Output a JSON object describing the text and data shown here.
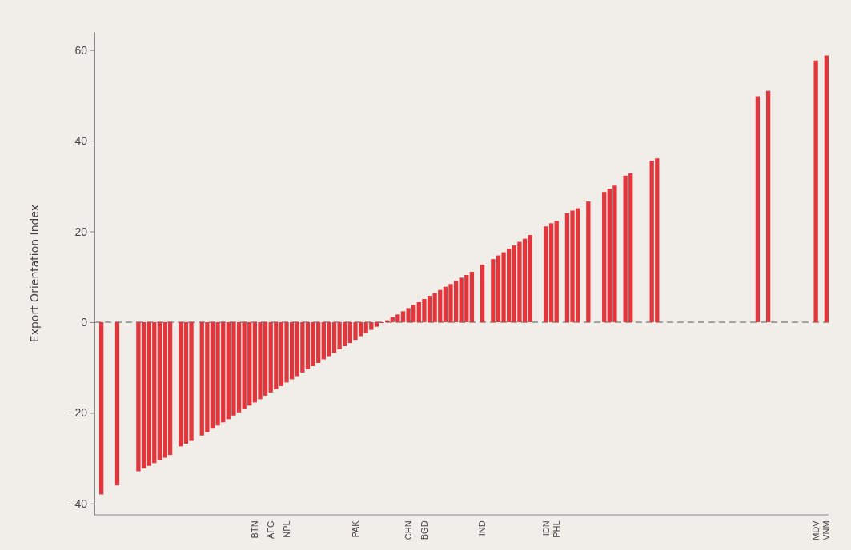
{
  "chart_data": {
    "type": "bar",
    "ylabel": "Export Orientation Index",
    "categories": [
      null,
      null,
      null,
      null,
      null,
      null,
      null,
      null,
      null,
      null,
      null,
      null,
      null,
      null,
      null,
      null,
      null,
      null,
      null,
      null,
      null,
      null,
      null,
      null,
      null,
      null,
      null,
      null,
      null,
      "BTN",
      null,
      null,
      "AFG",
      null,
      null,
      "NPL",
      null,
      null,
      null,
      null,
      null,
      null,
      null,
      null,
      null,
      null,
      null,
      null,
      "PAK",
      null,
      null,
      null,
      null,
      null,
      null,
      null,
      null,
      null,
      "CHN",
      null,
      null,
      "BGD",
      null,
      null,
      null,
      null,
      null,
      null,
      null,
      null,
      null,
      null,
      "IND",
      null,
      null,
      null,
      null,
      null,
      null,
      null,
      null,
      null,
      null,
      null,
      "IDN",
      null,
      "PHL",
      null,
      null,
      null,
      null,
      null,
      null,
      null,
      null,
      null,
      null,
      null,
      null,
      null,
      null,
      null,
      null,
      null,
      null,
      null,
      null,
      null,
      null,
      null,
      null,
      null,
      null,
      null,
      null,
      null,
      null,
      null,
      null,
      null,
      null,
      null,
      null,
      null,
      null,
      null,
      null,
      null,
      null,
      null,
      null,
      null,
      null,
      null,
      null,
      "MDV",
      null,
      "VNM"
    ],
    "values": [
      -38,
      null,
      null,
      -36,
      null,
      null,
      null,
      -32.9,
      -32.3,
      -31.7,
      -31.1,
      -30.5,
      -29.9,
      -29.3,
      null,
      -27.4,
      -26.8,
      -26.2,
      null,
      -25.0,
      -24.3,
      -23.5,
      -22.8,
      -22.1,
      -21.4,
      -20.6,
      -19.9,
      -19.2,
      -18.4,
      -17.7,
      -17.0,
      -16.2,
      -15.5,
      -14.8,
      -14.1,
      -13.3,
      -12.6,
      -11.9,
      -11.1,
      -10.4,
      -9.7,
      -9.0,
      -8.2,
      -7.5,
      -6.8,
      -6.0,
      -5.3,
      -4.6,
      -3.9,
      -3.1,
      -2.4,
      -1.7,
      -1.0,
      -0.2,
      0.4,
      1.1,
      1.7,
      2.4,
      3.1,
      3.8,
      4.4,
      5.1,
      5.8,
      6.4,
      7.1,
      7.8,
      8.4,
      9.1,
      9.8,
      10.4,
      11.1,
      null,
      12.7,
      null,
      13.9,
      14.7,
      15.4,
      16.2,
      16.9,
      17.7,
      18.4,
      19.2,
      null,
      null,
      21.1,
      21.8,
      22.3,
      null,
      24.0,
      24.6,
      25.1,
      null,
      26.6,
      null,
      null,
      28.7,
      29.4,
      30.1,
      null,
      32.3,
      32.8,
      null,
      null,
      null,
      35.6,
      36.1,
      null,
      null,
      null,
      null,
      null,
      null,
      null,
      null,
      null,
      null,
      null,
      null,
      null,
      null,
      null,
      null,
      null,
      null,
      49.8,
      null,
      51.0,
      null,
      null,
      null,
      null,
      null,
      null,
      null,
      null,
      57.7,
      null,
      58.8
    ],
    "color": "#e1363b",
    "ylim": [
      -42.5,
      64
    ],
    "yticks": [
      {
        "value": -40,
        "label": "−40"
      },
      {
        "value": -20,
        "label": "−20"
      },
      0,
      20,
      40,
      60
    ],
    "ref_lines": [
      {
        "axis": "y",
        "value": 0,
        "color": "#8a8a8a",
        "line_style": "dashed"
      }
    ],
    "grid": false
  }
}
